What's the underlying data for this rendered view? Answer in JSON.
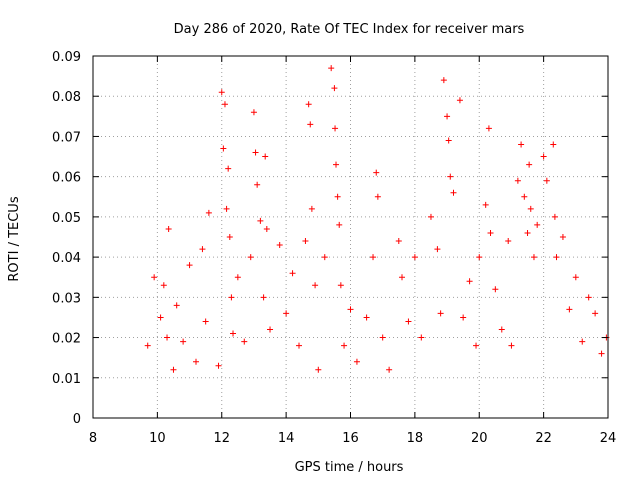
{
  "chart_data": {
    "type": "scatter",
    "title": "Day 286 of 2020, Rate Of TEC Index for receiver mars",
    "xlabel": "GPS time / hours",
    "ylabel": "ROTI / TECUs",
    "xlim": [
      8,
      24
    ],
    "ylim": [
      0,
      0.09
    ],
    "xticks": [
      8,
      10,
      12,
      14,
      16,
      18,
      20,
      22,
      24
    ],
    "xtick_labels": [
      "8",
      "10",
      "12",
      "14",
      "16",
      "18",
      "20",
      "22",
      "24"
    ],
    "yticks": [
      0,
      0.01,
      0.02,
      0.03,
      0.04,
      0.05,
      0.06,
      0.07,
      0.08,
      0.09
    ],
    "ytick_labels": [
      "0",
      "0.01",
      "0.02",
      "0.03",
      "0.04",
      "0.05",
      "0.06",
      "0.07",
      "0.08",
      "0.09"
    ],
    "grid": true,
    "marker": "+",
    "series": [
      {
        "name": "ROTI",
        "color": "#ff0000",
        "x": [
          9.7,
          9.9,
          10.1,
          10.2,
          10.3,
          10.35,
          10.5,
          10.6,
          10.8,
          11.0,
          11.2,
          11.4,
          11.5,
          11.6,
          11.9,
          12.0,
          12.05,
          12.1,
          12.15,
          12.2,
          12.25,
          12.3,
          12.35,
          12.5,
          12.7,
          12.9,
          13.0,
          13.05,
          13.1,
          13.2,
          13.3,
          13.35,
          13.4,
          13.5,
          13.8,
          14.0,
          14.2,
          14.4,
          14.6,
          14.7,
          14.75,
          14.8,
          14.9,
          15.0,
          15.2,
          15.4,
          15.5,
          15.52,
          15.55,
          15.6,
          15.65,
          15.7,
          15.8,
          16.0,
          16.2,
          16.5,
          16.7,
          16.8,
          16.85,
          17.0,
          17.2,
          17.5,
          17.6,
          17.8,
          18.0,
          18.2,
          18.5,
          18.7,
          18.8,
          18.9,
          19.0,
          19.05,
          19.1,
          19.2,
          19.4,
          19.5,
          19.7,
          19.9,
          20.0,
          20.2,
          20.3,
          20.35,
          20.5,
          20.7,
          20.9,
          21.0,
          21.2,
          21.3,
          21.4,
          21.5,
          21.55,
          21.6,
          21.7,
          21.8,
          22.0,
          22.1,
          22.3,
          22.35,
          22.4,
          22.6,
          22.8,
          23.0,
          23.2,
          23.4,
          23.6,
          23.8,
          23.95
        ],
        "y": [
          0.018,
          0.035,
          0.025,
          0.033,
          0.02,
          0.047,
          0.012,
          0.028,
          0.019,
          0.038,
          0.014,
          0.042,
          0.024,
          0.051,
          0.013,
          0.081,
          0.067,
          0.078,
          0.052,
          0.062,
          0.045,
          0.03,
          0.021,
          0.035,
          0.019,
          0.04,
          0.076,
          0.066,
          0.058,
          0.049,
          0.03,
          0.065,
          0.047,
          0.022,
          0.043,
          0.026,
          0.036,
          0.018,
          0.044,
          0.078,
          0.073,
          0.052,
          0.033,
          0.012,
          0.04,
          0.087,
          0.082,
          0.072,
          0.063,
          0.055,
          0.048,
          0.033,
          0.018,
          0.027,
          0.014,
          0.025,
          0.04,
          0.061,
          0.055,
          0.02,
          0.012,
          0.044,
          0.035,
          0.024,
          0.04,
          0.02,
          0.05,
          0.042,
          0.026,
          0.084,
          0.075,
          0.069,
          0.06,
          0.056,
          0.079,
          0.025,
          0.034,
          0.018,
          0.04,
          0.053,
          0.072,
          0.046,
          0.032,
          0.022,
          0.044,
          0.018,
          0.059,
          0.068,
          0.055,
          0.046,
          0.063,
          0.052,
          0.04,
          0.048,
          0.065,
          0.059,
          0.068,
          0.05,
          0.04,
          0.045,
          0.027,
          0.035,
          0.019,
          0.03,
          0.026,
          0.016,
          0.02
        ]
      }
    ]
  }
}
